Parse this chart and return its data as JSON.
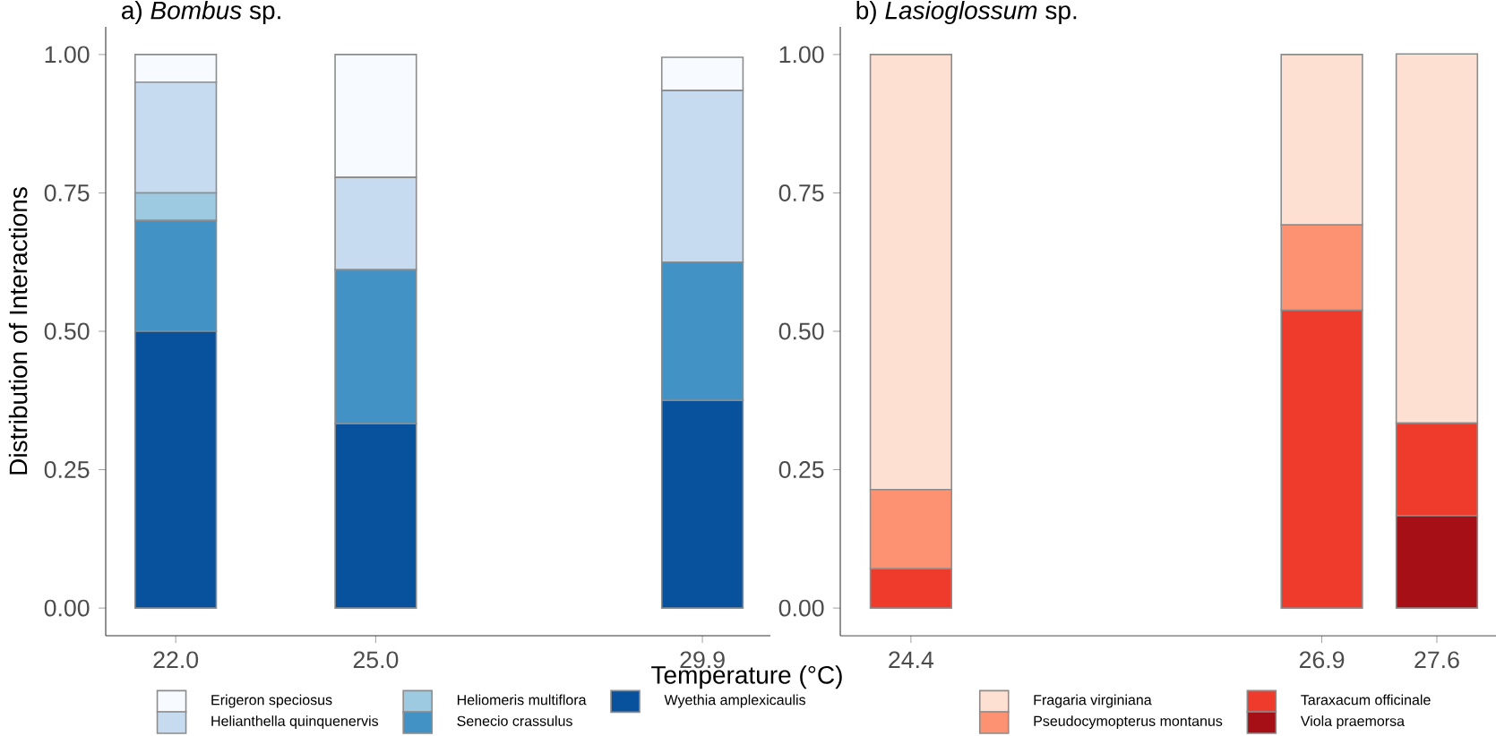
{
  "chart_data": [
    {
      "type": "bar",
      "stacked": true,
      "title": "a) *Bombus* sp.",
      "xlabel": "Temperature (°C)",
      "ylabel": "Distribution of Interactions",
      "x": [
        22.0,
        25.0,
        29.9
      ],
      "xlim": [
        20.95,
        30.92
      ],
      "ylim": [
        -0.05,
        1.05
      ],
      "xticks": [
        {
          "value": 22.0,
          "label": "22.0"
        },
        {
          "value": 25.0,
          "label": "25.0"
        },
        {
          "value": 29.9,
          "label": "29.9"
        }
      ],
      "yticks": [
        {
          "value": 0,
          "label": "0.00"
        },
        {
          "value": 0.25,
          "label": "0.25"
        },
        {
          "value": 0.5,
          "label": "0.50"
        },
        {
          "value": 0.75,
          "label": "0.75"
        },
        {
          "value": 1,
          "label": "1.00"
        }
      ],
      "legend": "bottom",
      "series": [
        {
          "name": "Wyethia amplexicaulis",
          "color": "#08519c",
          "values": [
            0.5,
            0.333,
            0.375
          ]
        },
        {
          "name": "Senecio crassulus",
          "color": "#4292c6",
          "values": [
            0.2,
            0.278,
            0.25
          ]
        },
        {
          "name": "Heliomeris multiflora",
          "color": "#9ecae1",
          "values": [
            0.05,
            0,
            0
          ]
        },
        {
          "name": "Helianthella quinquenervis",
          "color": "#c6dbef",
          "values": [
            0.2,
            0.167,
            0.31
          ]
        },
        {
          "name": "Erigeron speciosus",
          "color": "#f7fbff",
          "values": [
            0.05,
            0.222,
            0.06
          ]
        }
      ]
    },
    {
      "type": "bar",
      "stacked": true,
      "title": "b) *Lasioglossum* sp.",
      "x": [
        24.4,
        26.9,
        27.6
      ],
      "xlim": [
        23.97,
        27.96
      ],
      "ylim": [
        -0.05,
        1.05
      ],
      "xticks": [
        {
          "value": 24.4,
          "label": "24.4"
        },
        {
          "value": 26.9,
          "label": "26.9"
        },
        {
          "value": 27.6,
          "label": "27.6"
        }
      ],
      "yticks": [
        {
          "value": 0,
          "label": "0.00"
        },
        {
          "value": 0.25,
          "label": "0.25"
        },
        {
          "value": 0.5,
          "label": "0.50"
        },
        {
          "value": 0.75,
          "label": "0.75"
        },
        {
          "value": 1,
          "label": "1.00"
        }
      ],
      "legend": "bottom",
      "series": [
        {
          "name": "Viola praemorsa",
          "color": "#a50f15",
          "values": [
            0,
            0,
            0.167
          ]
        },
        {
          "name": "Taraxacum officinale",
          "color": "#ef3b2c",
          "values": [
            0.071,
            0.538,
            0.167
          ]
        },
        {
          "name": "Pseudocymopterus montanus",
          "color": "#fc9272",
          "values": [
            0.143,
            0.154,
            0
          ]
        },
        {
          "name": "Fragaria virginiana",
          "color": "#fee0d2",
          "values": [
            0.786,
            0.308,
            0.667
          ]
        }
      ]
    }
  ]
}
